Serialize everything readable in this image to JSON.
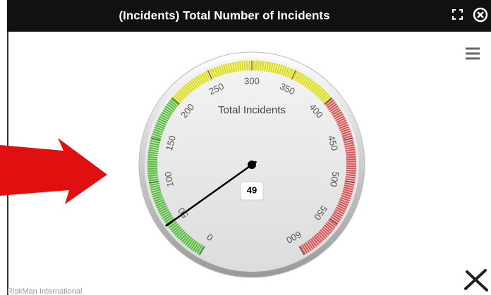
{
  "chart_data": {
    "type": "gauge",
    "title": "(Incidents) Total Number of Incidents",
    "subtitle": "Total Incidents",
    "credits": "RiskMan International",
    "values": [
      49
    ],
    "ylim": [
      0,
      600
    ],
    "yticks": [
      0,
      50,
      100,
      150,
      200,
      250,
      300,
      350,
      400,
      450,
      500,
      550,
      600
    ],
    "plot_bands": [
      {
        "from": 0,
        "to": 200,
        "color": "#55BF3B"
      },
      {
        "from": 200,
        "to": 400,
        "color": "#DDDF0D"
      },
      {
        "from": 400,
        "to": 600,
        "color": "#DF5353"
      }
    ]
  }
}
